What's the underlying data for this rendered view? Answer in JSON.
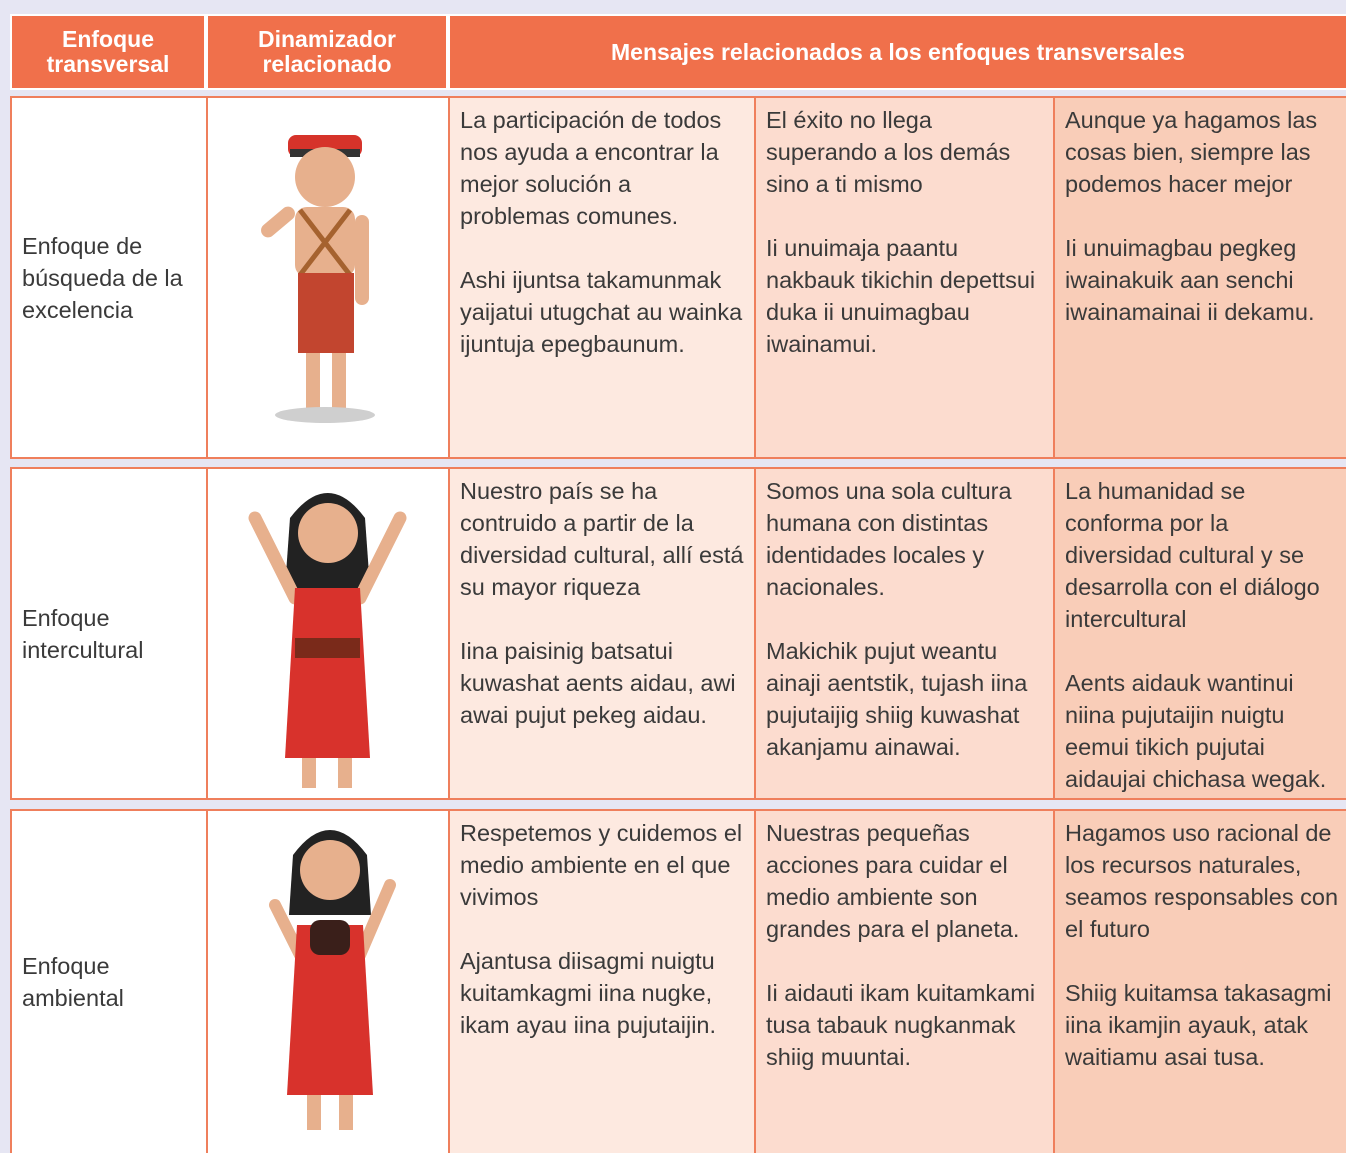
{
  "table": {
    "headers": [
      "Enfoque transversal",
      "Dinamizador relacionado",
      "Mensajes relacionados a los enfoques transversales"
    ],
    "rows": [
      {
        "enfoque": "Enfoque de búsqueda de la excelencia",
        "messages": [
          [
            "La participación de todos nos ayuda a encontrar la mejor solución a problemas comunes.",
            "Ashi ijuntsa takamunmak yaijatui utugchat au wainka ijuntuja epegbaunum."
          ],
          [
            "El éxito no llega superando a los demás sino a ti mismo",
            "Ii unuimaja paantu nakbauk tikichin depettsui duka  ii unuimagbau iwainamui."
          ],
          [
            "Aunque ya hagamos las cosas bien, siempre las podemos hacer mejor",
            "Ii unuimagbau pegkeg iwainakuik aan senchi iwainamainai ii dekamu."
          ]
        ]
      },
      {
        "enfoque": "Enfoque intercultural",
        "messages": [
          [
            "Nuestro país se ha contruido a partir de la diversidad cultural, allí está su mayor riqueza",
            "Iina paisinig batsatui kuwashat aents aidau, awi awai pujut pekeg aidau."
          ],
          [
            "Somos una sola cultura humana con distintas identidades locales y nacionales.",
            "Makichik pujut weantu ainaji aentstik, tujash iina pujutaijig shiig kuwashat akanjamu ainawai."
          ],
          [
            "La humanidad se conforma por la diversidad cultural y se desarrolla con el diálogo intercultural",
            "Aents aidauk wantinui niina pujutaijin  nuigtu eemui tikich pujutai aidaujai chichasa wegak."
          ]
        ]
      },
      {
        "enfoque": "Enfoque ambiental",
        "messages": [
          [
            "Respetemos y cuidemos el medio ambiente en el que vivimos",
            "Ajantusa diisagmi nuigtu kuitamkagmi iina nugke, ikam ayau iina pujutaijin."
          ],
          [
            "Nuestras pequeñas acciones para cuidar el medio ambiente son grandes para el planeta.",
            "Ii aidauti ikam kuitamkami tusa tabauk nugkanmak shiig muuntai."
          ],
          [
            "Hagamos uso racional de los recursos naturales, seamos responsables con el futuro",
            "Shiig kuitamsa takasagmi iina ikamjin ayauk, atak waitiamu asai tusa."
          ]
        ]
      }
    ]
  }
}
